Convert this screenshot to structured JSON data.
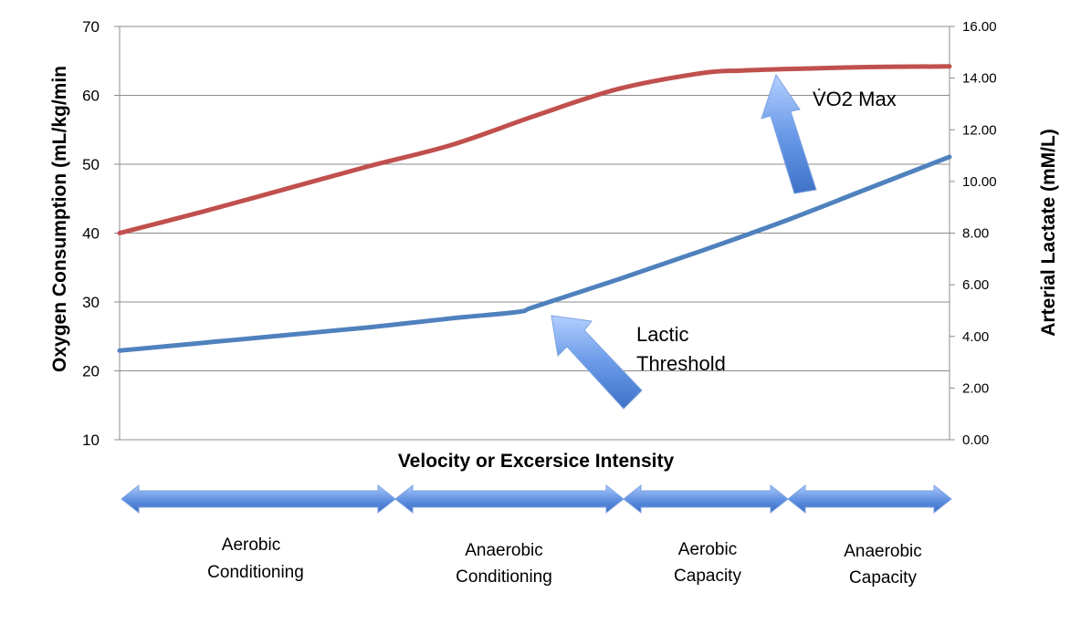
{
  "chart_data": {
    "type": "line",
    "xlabel": "Velocity or Excersice Intensity",
    "ylabel_left": "Oxygen Consumption (mL/kg/min",
    "ylabel_right": "Arterial Lactate (mM/L)",
    "ylim_left": [
      10,
      70
    ],
    "ylim_right": [
      0,
      16
    ],
    "yticks_left": [
      "10",
      "20",
      "30",
      "40",
      "50",
      "60",
      "70"
    ],
    "yticks_right": [
      "0.00",
      "2.00",
      "4.00",
      "6.00",
      "8.00",
      "10.00",
      "12.00",
      "14.00",
      "16.00"
    ],
    "x_domain": [
      0,
      1
    ],
    "grid": true,
    "legend": "none",
    "series": [
      {
        "axis": "left",
        "color": "#c0504d",
        "x": [
          0.0,
          0.1,
          0.2,
          0.3,
          0.4,
          0.5,
          0.6,
          0.7,
          0.75,
          0.8,
          0.9,
          1.0
        ],
        "values": [
          40,
          43.1,
          46.4,
          49.7,
          52.8,
          57.0,
          60.9,
          63.2,
          63.6,
          63.8,
          64.1,
          64.2
        ]
      },
      {
        "axis": "right",
        "color": "#4f81bd",
        "x": [
          0.0,
          0.1,
          0.2,
          0.3,
          0.4,
          0.48,
          0.5,
          0.6,
          0.7,
          0.8,
          0.9,
          1.0
        ],
        "values": [
          3.45,
          3.75,
          4.05,
          4.35,
          4.7,
          4.95,
          5.15,
          6.2,
          7.3,
          8.45,
          9.7,
          10.95
        ]
      }
    ],
    "annotations": [
      {
        "id": "vo2max",
        "lines": [
          "V̇O2 Max"
        ]
      },
      {
        "id": "lactic",
        "lines": [
          "Lactic",
          "Threshold"
        ]
      }
    ],
    "zones": [
      {
        "label_lines": [
          "Aerobic",
          "Conditioning"
        ]
      },
      {
        "label_lines": [
          "Anaerobic",
          "Conditioning"
        ]
      },
      {
        "label_lines": [
          "Aerobic",
          "Capacity"
        ]
      },
      {
        "label_lines": [
          "Anaerobic",
          "Capacity"
        ]
      }
    ]
  }
}
